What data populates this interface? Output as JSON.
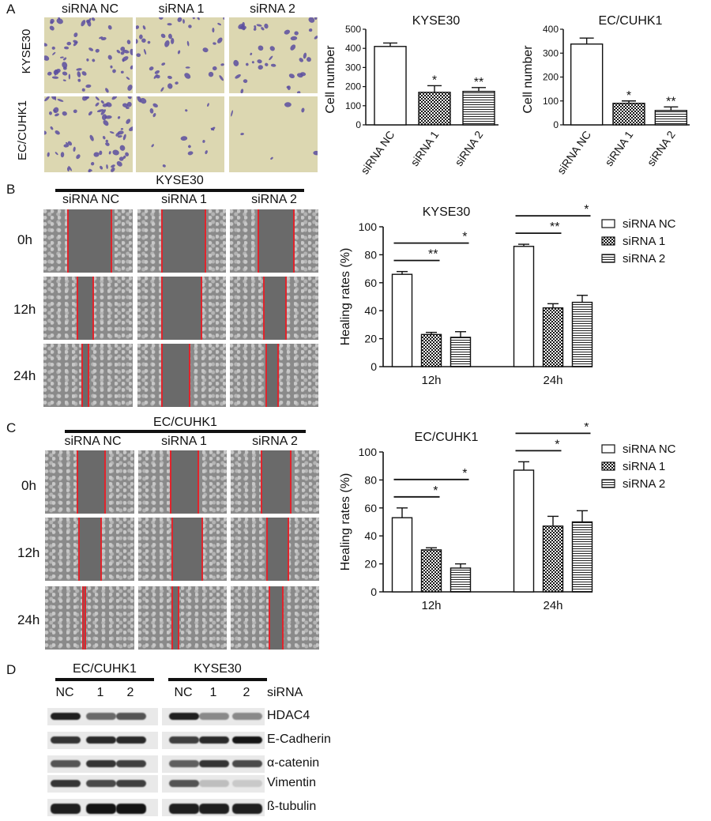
{
  "panel_labels": [
    "A",
    "B",
    "C",
    "D"
  ],
  "panelA": {
    "columns": [
      "siRNA NC",
      "siRNA 1",
      "siRNA 2"
    ],
    "rows": [
      "KYSE30",
      "EC/CUHK1"
    ]
  },
  "panelB": {
    "title": "KYSE30",
    "columns": [
      "siRNA NC",
      "siRNA 1",
      "siRNA 2"
    ],
    "rows": [
      "0h",
      "12h",
      "24h"
    ]
  },
  "panelC": {
    "title": "EC/CUHK1",
    "columns": [
      "siRNA NC",
      "siRNA 1",
      "siRNA 2"
    ],
    "rows": [
      "0h",
      "12h",
      "24h"
    ]
  },
  "panelD": {
    "groups": [
      "EC/CUHK1",
      "KYSE30"
    ],
    "lanes": [
      "NC",
      "1",
      "2",
      "NC",
      "1",
      "2"
    ],
    "lane_header": "siRNA",
    "proteins": [
      "HDAC4",
      "E-Cadherin",
      "α-catenin",
      "Vimentin",
      "ß-tubulin"
    ]
  },
  "colors": {
    "bar_edge": "#111111",
    "bar_fill": "#ffffff",
    "wound_line": "#e0242c",
    "crystal_violet": "#5a4ea0"
  },
  "chart_data": [
    {
      "type": "bar",
      "title": "KYSE30",
      "categories": [
        "siRNA NC",
        "siRNA 1",
        "siRNA 2"
      ],
      "values": [
        410,
        170,
        175
      ],
      "errors": [
        18,
        35,
        20
      ],
      "significance": [
        "",
        "*",
        "**"
      ],
      "ylabel": "Cell number",
      "ylim": [
        0,
        500
      ],
      "yticks": [
        0,
        100,
        200,
        300,
        400,
        500
      ],
      "patterns": [
        "plain",
        "checker",
        "stripes"
      ]
    },
    {
      "type": "bar",
      "title": "EC/CUHK1",
      "categories": [
        "siRNA NC",
        "siRNA 1",
        "siRNA 2"
      ],
      "values": [
        338,
        90,
        60
      ],
      "errors": [
        25,
        10,
        15
      ],
      "significance": [
        "",
        "*",
        "**"
      ],
      "ylabel": "Cell number",
      "ylim": [
        0,
        400
      ],
      "yticks": [
        0,
        100,
        200,
        300,
        400
      ],
      "patterns": [
        "plain",
        "checker",
        "stripes"
      ]
    },
    {
      "type": "bar",
      "title": "KYSE30",
      "categories": [
        "12h",
        "24h"
      ],
      "series": [
        {
          "name": "siRNA NC",
          "values": [
            66,
            86
          ],
          "errors": [
            2,
            1.5
          ],
          "pattern": "plain"
        },
        {
          "name": "siRNA 1",
          "values": [
            23,
            42
          ],
          "errors": [
            1.5,
            3
          ],
          "pattern": "checker"
        },
        {
          "name": "siRNA 2",
          "values": [
            21,
            46
          ],
          "errors": [
            4,
            5
          ],
          "pattern": "stripes"
        }
      ],
      "brackets": [
        {
          "group": 0,
          "to": 1,
          "label": "**"
        },
        {
          "group": 0,
          "to": 2,
          "label": "*"
        },
        {
          "group": 1,
          "to": 1,
          "label": "**"
        },
        {
          "group": 1,
          "to": 2,
          "label": "*"
        }
      ],
      "ylabel": "Healing rates (%)",
      "ylim": [
        0,
        100
      ],
      "yticks": [
        0,
        20,
        40,
        60,
        80,
        100
      ],
      "legend": "right"
    },
    {
      "type": "bar",
      "title": "EC/CUHK1",
      "categories": [
        "12h",
        "24h"
      ],
      "series": [
        {
          "name": "siRNA NC",
          "values": [
            53,
            87
          ],
          "errors": [
            7,
            6
          ],
          "pattern": "plain"
        },
        {
          "name": "siRNA 1",
          "values": [
            30,
            47
          ],
          "errors": [
            1.5,
            7
          ],
          "pattern": "checker"
        },
        {
          "name": "siRNA 2",
          "values": [
            17,
            50
          ],
          "errors": [
            3,
            8
          ],
          "pattern": "stripes"
        }
      ],
      "brackets": [
        {
          "group": 0,
          "to": 1,
          "label": "*"
        },
        {
          "group": 0,
          "to": 2,
          "label": "*"
        },
        {
          "group": 1,
          "to": 1,
          "label": "*"
        },
        {
          "group": 1,
          "to": 2,
          "label": "*"
        }
      ],
      "ylabel": "Healing rates (%)",
      "ylim": [
        0,
        100
      ],
      "yticks": [
        0,
        20,
        40,
        60,
        80,
        100
      ],
      "legend": "right"
    }
  ]
}
